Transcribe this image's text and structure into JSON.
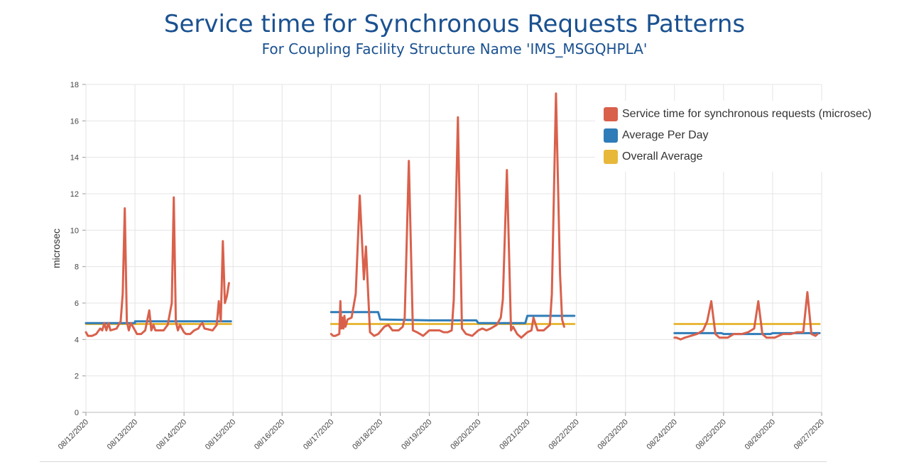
{
  "colors": {
    "title": "#1a5190",
    "service": "#d9614c",
    "avg_day": "#2f7cb8",
    "overall": "#e8b83a",
    "grid": "#e4e4e4",
    "tick_text": "#444444"
  },
  "chart_data": {
    "type": "line",
    "title": "Service time for Synchronous Requests Patterns",
    "subtitle": "For Coupling Facility Structure Name 'IMS_MSGQHPLA'",
    "ylabel": "microsec",
    "xlabel": "",
    "ylim": [
      0,
      18
    ],
    "yticks": [
      "0",
      "2",
      "4",
      "6",
      "8",
      "10",
      "12",
      "14",
      "16",
      "18"
    ],
    "xlim": [
      "08/12/2020",
      "08/27/2020"
    ],
    "xticks": [
      "08/12/2020",
      "08/13/2020",
      "08/14/2020",
      "08/15/2020",
      "08/16/2020",
      "08/17/2020",
      "08/18/2020",
      "08/19/2020",
      "08/20/2020",
      "08/21/2020",
      "08/22/2020",
      "08/23/2020",
      "08/24/2020",
      "08/25/2020",
      "08/26/2020",
      "08/27/2020"
    ],
    "grid": true,
    "legend_position": "top-right",
    "series": [
      {
        "name": "Service time for synchronous requests (microsec)",
        "segments": [
          [
            [
              "08/12/2020 00:00",
              4.4
            ],
            [
              "08/12/2020 01:00",
              4.2
            ],
            [
              "08/12/2020 03:00",
              4.2
            ],
            [
              "08/12/2020 05:00",
              4.3
            ],
            [
              "08/12/2020 07:00",
              4.6
            ],
            [
              "08/12/2020 08:00",
              4.5
            ],
            [
              "08/12/2020 09:00",
              4.9
            ],
            [
              "08/12/2020 10:00",
              4.5
            ],
            [
              "08/12/2020 11:00",
              4.9
            ],
            [
              "08/12/2020 12:00",
              4.5
            ],
            [
              "08/12/2020 15:00",
              4.6
            ],
            [
              "08/12/2020 17:00",
              5.0
            ],
            [
              "08/12/2020 18:00",
              6.5
            ],
            [
              "08/12/2020 19:00",
              11.2
            ],
            [
              "08/12/2020 20:00",
              5.0
            ],
            [
              "08/12/2020 21:00",
              4.5
            ],
            [
              "08/12/2020 22:00",
              4.9
            ],
            [
              "08/13/2020 00:00",
              4.5
            ],
            [
              "08/13/2020 01:00",
              4.3
            ],
            [
              "08/13/2020 03:00",
              4.3
            ],
            [
              "08/13/2020 05:00",
              4.5
            ],
            [
              "08/13/2020 07:00",
              5.6
            ],
            [
              "08/13/2020 08:00",
              4.5
            ],
            [
              "08/13/2020 09:00",
              4.8
            ],
            [
              "08/13/2020 10:00",
              4.5
            ],
            [
              "08/13/2020 14:00",
              4.5
            ],
            [
              "08/13/2020 16:00",
              4.8
            ],
            [
              "08/13/2020 18:00",
              6.0
            ],
            [
              "08/13/2020 19:00",
              11.8
            ],
            [
              "08/13/2020 20:00",
              5.0
            ],
            [
              "08/13/2020 21:00",
              4.5
            ],
            [
              "08/13/2020 22:00",
              4.8
            ],
            [
              "08/14/2020 00:00",
              4.4
            ],
            [
              "08/14/2020 01:00",
              4.3
            ],
            [
              "08/14/2020 03:00",
              4.3
            ],
            [
              "08/14/2020 05:00",
              4.5
            ],
            [
              "08/14/2020 07:00",
              4.6
            ],
            [
              "08/14/2020 08:00",
              4.8
            ],
            [
              "08/14/2020 09:00",
              4.9
            ],
            [
              "08/14/2020 10:00",
              4.6
            ],
            [
              "08/14/2020 14:00",
              4.5
            ],
            [
              "08/14/2020 16:00",
              4.8
            ],
            [
              "08/14/2020 17:00",
              6.1
            ],
            [
              "08/14/2020 18:00",
              5.0
            ],
            [
              "08/14/2020 19:00",
              9.4
            ],
            [
              "08/14/2020 20:00",
              6.0
            ],
            [
              "08/14/2020 21:00",
              6.4
            ],
            [
              "08/14/2020 22:00",
              7.1
            ]
          ],
          [
            [
              "08/17/2020 00:00",
              4.3
            ],
            [
              "08/17/2020 01:00",
              4.2
            ],
            [
              "08/17/2020 02:00",
              4.2
            ],
            [
              "08/17/2020 04:00",
              4.3
            ],
            [
              "08/17/2020 04:30",
              6.1
            ],
            [
              "08/17/2020 05:00",
              4.6
            ],
            [
              "08/17/2020 05:30",
              5.2
            ],
            [
              "08/17/2020 06:00",
              4.6
            ],
            [
              "08/17/2020 06:30",
              5.3
            ],
            [
              "08/17/2020 07:00",
              4.7
            ],
            [
              "08/17/2020 08:00",
              5.1
            ],
            [
              "08/17/2020 10:00",
              5.2
            ],
            [
              "08/17/2020 12:00",
              6.5
            ],
            [
              "08/17/2020 14:00",
              11.9
            ],
            [
              "08/17/2020 16:00",
              7.3
            ],
            [
              "08/17/2020 17:00",
              9.1
            ],
            [
              "08/17/2020 19:00",
              4.4
            ],
            [
              "08/17/2020 21:00",
              4.2
            ],
            [
              "08/17/2020 23:00",
              4.3
            ],
            [
              "08/18/2020 02:00",
              4.7
            ],
            [
              "08/18/2020 04:00",
              4.8
            ],
            [
              "08/18/2020 06:00",
              4.5
            ],
            [
              "08/18/2020 09:00",
              4.5
            ],
            [
              "08/18/2020 11:00",
              4.7
            ],
            [
              "08/18/2020 12:00",
              5.2
            ],
            [
              "08/18/2020 14:00",
              13.8
            ],
            [
              "08/18/2020 16:00",
              4.5
            ],
            [
              "08/18/2020 18:00",
              4.4
            ],
            [
              "08/18/2020 21:00",
              4.2
            ],
            [
              "08/19/2020 00:00",
              4.5
            ],
            [
              "08/19/2020 02:00",
              4.5
            ],
            [
              "08/19/2020 05:00",
              4.5
            ],
            [
              "08/19/2020 07:00",
              4.4
            ],
            [
              "08/19/2020 09:00",
              4.4
            ],
            [
              "08/19/2020 11:00",
              4.5
            ],
            [
              "08/19/2020 12:00",
              6.2
            ],
            [
              "08/19/2020 14:00",
              16.2
            ],
            [
              "08/19/2020 16:00",
              4.6
            ],
            [
              "08/19/2020 18:00",
              4.3
            ],
            [
              "08/19/2020 21:00",
              4.2
            ],
            [
              "08/20/2020 00:00",
              4.5
            ],
            [
              "08/20/2020 02:00",
              4.6
            ],
            [
              "08/20/2020 04:00",
              4.5
            ],
            [
              "08/20/2020 06:00",
              4.6
            ],
            [
              "08/20/2020 09:00",
              4.8
            ],
            [
              "08/20/2020 11:00",
              5.2
            ],
            [
              "08/20/2020 12:00",
              6.2
            ],
            [
              "08/20/2020 14:00",
              13.3
            ],
            [
              "08/20/2020 16:00",
              4.5
            ],
            [
              "08/20/2020 17:00",
              4.7
            ],
            [
              "08/20/2020 19:00",
              4.3
            ],
            [
              "08/20/2020 21:00",
              4.1
            ],
            [
              "08/21/2020 00:00",
              4.4
            ],
            [
              "08/21/2020 02:00",
              4.5
            ],
            [
              "08/21/2020 03:00",
              5.2
            ],
            [
              "08/21/2020 05:00",
              4.5
            ],
            [
              "08/21/2020 08:00",
              4.5
            ],
            [
              "08/21/2020 11:00",
              4.8
            ],
            [
              "08/21/2020 12:00",
              6.5
            ],
            [
              "08/21/2020 14:00",
              17.5
            ],
            [
              "08/21/2020 16:00",
              7.6
            ],
            [
              "08/21/2020 17:00",
              5.1
            ],
            [
              "08/21/2020 18:00",
              4.7
            ]
          ],
          [
            [
              "08/24/2020 00:00",
              4.1
            ],
            [
              "08/24/2020 01:00",
              4.1
            ],
            [
              "08/24/2020 03:00",
              4.0
            ],
            [
              "08/24/2020 05:00",
              4.1
            ],
            [
              "08/24/2020 08:00",
              4.2
            ],
            [
              "08/24/2020 11:00",
              4.3
            ],
            [
              "08/24/2020 14:00",
              4.5
            ],
            [
              "08/24/2020 16:00",
              5.0
            ],
            [
              "08/24/2020 18:00",
              6.1
            ],
            [
              "08/24/2020 20:00",
              4.3
            ],
            [
              "08/24/2020 22:00",
              4.1
            ],
            [
              "08/25/2020 02:00",
              4.1
            ],
            [
              "08/25/2020 05:00",
              4.3
            ],
            [
              "08/25/2020 09:00",
              4.3
            ],
            [
              "08/25/2020 12:00",
              4.4
            ],
            [
              "08/25/2020 15:00",
              4.6
            ],
            [
              "08/25/2020 17:00",
              6.1
            ],
            [
              "08/25/2020 19:00",
              4.3
            ],
            [
              "08/25/2020 21:00",
              4.1
            ],
            [
              "08/26/2020 01:00",
              4.1
            ],
            [
              "08/26/2020 05:00",
              4.3
            ],
            [
              "08/26/2020 09:00",
              4.3
            ],
            [
              "08/26/2020 12:00",
              4.4
            ],
            [
              "08/26/2020 15:00",
              4.4
            ],
            [
              "08/26/2020 17:00",
              6.6
            ],
            [
              "08/26/2020 19:00",
              4.3
            ],
            [
              "08/26/2020 21:00",
              4.2
            ],
            [
              "08/26/2020 22:00",
              4.3
            ]
          ]
        ]
      },
      {
        "name": "Average Per Day",
        "segments": [
          [
            [
              "08/12/2020 00:00",
              4.9
            ],
            [
              "08/13/2020 00:00",
              4.9
            ],
            [
              "08/13/2020 00:01",
              5.0
            ],
            [
              "08/14/2020 00:00",
              5.0
            ],
            [
              "08/14/2020 00:01",
              5.0
            ],
            [
              "08/14/2020 23:00",
              5.0
            ]
          ],
          [
            [
              "08/17/2020 00:00",
              5.5
            ],
            [
              "08/17/2020 23:00",
              5.5
            ],
            [
              "08/18/2020 00:00",
              5.1
            ],
            [
              "08/19/2020 00:00",
              5.05
            ],
            [
              "08/19/2020 23:00",
              5.05
            ],
            [
              "08/20/2020 00:00",
              4.9
            ],
            [
              "08/20/2020 23:00",
              4.9
            ],
            [
              "08/21/2020 00:00",
              5.3
            ],
            [
              "08/21/2020 23:00",
              5.3
            ]
          ],
          [
            [
              "08/24/2020 00:00",
              4.35
            ],
            [
              "08/24/2020 23:00",
              4.35
            ],
            [
              "08/25/2020 00:00",
              4.3
            ],
            [
              "08/25/2020 23:00",
              4.3
            ],
            [
              "08/26/2020 00:00",
              4.35
            ],
            [
              "08/26/2020 23:00",
              4.35
            ]
          ]
        ]
      },
      {
        "name": "Overall Average",
        "segments": [
          [
            [
              "08/12/2020 00:00",
              4.85
            ],
            [
              "08/14/2020 23:00",
              4.85
            ]
          ],
          [
            [
              "08/17/2020 00:00",
              4.85
            ],
            [
              "08/21/2020 23:00",
              4.85
            ]
          ],
          [
            [
              "08/24/2020 00:00",
              4.85
            ],
            [
              "08/26/2020 23:00",
              4.85
            ]
          ]
        ]
      }
    ]
  }
}
